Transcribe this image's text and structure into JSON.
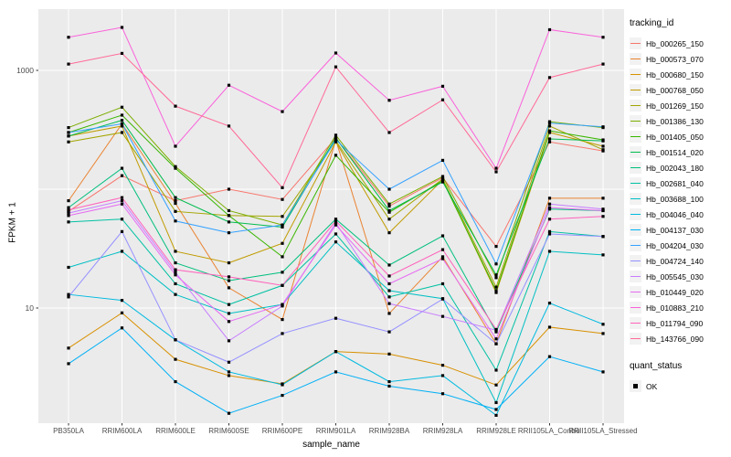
{
  "chart_data": {
    "type": "line",
    "title": "",
    "xlabel": "sample_name",
    "ylabel": "FPKM + 1",
    "x_categories": [
      "PB350LA",
      "RRIM600LA",
      "RRIM600LE",
      "RRIM600SE",
      "RRIM600PE",
      "RRIM901LA",
      "RRIM928BA",
      "RRIM928LA",
      "RRIM928LE",
      "RRII105LA_Control",
      "RRII105LA_Stressed"
    ],
    "y_scale": "log10",
    "y_tick_labels": [
      "1000",
      "10"
    ],
    "y_tick_values": [
      1000,
      10
    ],
    "y_gridline_values": [
      10,
      100,
      1000
    ],
    "ylim": [
      1,
      3200
    ],
    "grid": true,
    "panel_bg": "#EBEBEB",
    "grid_color": "#FFFFFF",
    "tick_label_color": "#4D4D4D",
    "marker": {
      "shape": "filled-square",
      "color": "#000000"
    },
    "legend": {
      "title": "tracking_id",
      "position": "right"
    },
    "legend2": {
      "title": "quant_status",
      "items": [
        {
          "label": "OK",
          "marker": "black-square"
        }
      ]
    },
    "series": [
      {
        "name": "Hb_000265_150",
        "color": "#F8766D",
        "values": [
          65,
          130,
          80,
          100,
          82,
          270,
          72,
          125,
          33,
          250,
          210
        ]
      },
      {
        "name": "Hb_000573_070",
        "color": "#EA8331",
        "values": [
          80,
          355,
          76,
          14.8,
          8,
          260,
          9,
          27,
          5,
          84,
          84
        ]
      },
      {
        "name": "Hb_000680_150",
        "color": "#D89000",
        "values": [
          4.6,
          9.1,
          3.7,
          2.7,
          2.3,
          4.3,
          4.1,
          3.3,
          2.25,
          6.9,
          6.1
        ]
      },
      {
        "name": "Hb_000768_050",
        "color": "#C09B00",
        "values": [
          280,
          340,
          30,
          24,
          35,
          250,
          43,
          120,
          13.5,
          300,
          230
        ]
      },
      {
        "name": "Hb_001269_150",
        "color": "#A3A500",
        "values": [
          250,
          300,
          65,
          60,
          59,
          255,
          56,
          122,
          15,
          340,
          215
        ]
      },
      {
        "name": "Hb_001386_130",
        "color": "#7CAE00",
        "values": [
          330,
          490,
          155,
          66,
          50,
          285,
          75,
          128,
          18,
          370,
          330
        ]
      },
      {
        "name": "Hb_001405_050",
        "color": "#39B600",
        "values": [
          300,
          420,
          150,
          60,
          27,
          193,
          64,
          118,
          14,
          310,
          260
        ]
      },
      {
        "name": "Hb_001514_020",
        "color": "#00BB4E",
        "values": [
          280,
          380,
          85,
          53,
          48,
          270,
          66,
          115,
          19,
          265,
          255
        ]
      },
      {
        "name": "Hb_002043_180",
        "color": "#00BF7D",
        "values": [
          70,
          150,
          24,
          17,
          20,
          56,
          23,
          40.5,
          6.3,
          68,
          66
        ]
      },
      {
        "name": "Hb_002681_040",
        "color": "#00C1A3",
        "values": [
          53,
          56,
          16,
          10.7,
          15.5,
          42,
          12.4,
          16,
          3,
          44,
          40
        ]
      },
      {
        "name": "Hb_003688_100",
        "color": "#00BFC4",
        "values": [
          22,
          30,
          13,
          9,
          10.7,
          36,
          14,
          12,
          1.6,
          30,
          28
        ]
      },
      {
        "name": "Hb_004046_040",
        "color": "#00BAE0",
        "values": [
          13,
          11.6,
          5.4,
          2.9,
          2.26,
          4.3,
          2.4,
          2.7,
          1.25,
          11,
          7.3
        ]
      },
      {
        "name": "Hb_004137_030",
        "color": "#00B0F6",
        "values": [
          3.4,
          6.8,
          2.4,
          1.3,
          1.84,
          2.9,
          2.2,
          1.9,
          1.4,
          3.9,
          2.9
        ]
      },
      {
        "name": "Hb_004204_030",
        "color": "#35A2FF",
        "values": [
          300,
          355,
          54,
          43,
          50,
          260,
          100,
          175,
          23.5,
          360,
          335
        ]
      },
      {
        "name": "Hb_004724_140",
        "color": "#9590FF",
        "values": [
          12.4,
          44,
          5.4,
          3.5,
          6.1,
          8.2,
          6.3,
          11.9,
          5,
          42,
          40
        ]
      },
      {
        "name": "Hb_005545_030",
        "color": "#C77CFF",
        "values": [
          63,
          80,
          20,
          5.3,
          10.4,
          52,
          10.9,
          8.5,
          6.5,
          75,
          68
        ]
      },
      {
        "name": "Hb_010449_020",
        "color": "#E76BF3",
        "values": [
          60,
          75,
          19,
          7.7,
          10.7,
          50,
          16,
          26,
          5.5,
          70,
          66
        ]
      },
      {
        "name": "Hb_010883_210",
        "color": "#FA62DB",
        "values": [
          1900,
          2300,
          230,
          750,
          450,
          1400,
          560,
          735,
          150,
          2200,
          1900
        ]
      },
      {
        "name": "Hb_011794_090",
        "color": "#FF62BC",
        "values": [
          67,
          85,
          21,
          18.3,
          15.5,
          54,
          18.6,
          31,
          6.6,
          56,
          59
        ]
      },
      {
        "name": "Hb_143766_090",
        "color": "#FF6A98",
        "values": [
          1130,
          1390,
          500,
          340,
          103,
          1070,
          300,
          565,
          140,
          870,
          1130
        ]
      }
    ]
  }
}
